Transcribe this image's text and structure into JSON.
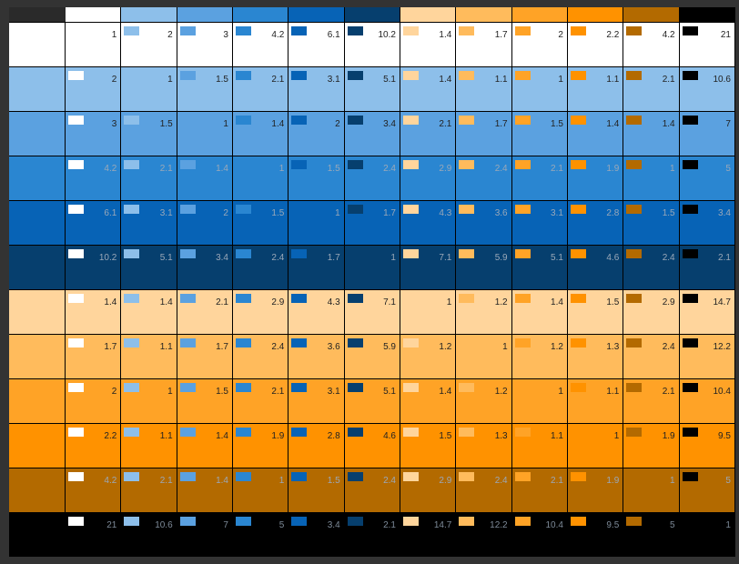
{
  "palette": [
    {
      "name": "white",
      "hex": "#ffffff"
    },
    {
      "name": "light-blue",
      "hex": "#8dbfea"
    },
    {
      "name": "sky-blue",
      "hex": "#5ba1e0"
    },
    {
      "name": "azure",
      "hex": "#2a86d1"
    },
    {
      "name": "royal-blue",
      "hex": "#0763b6"
    },
    {
      "name": "navy-blue",
      "hex": "#063f6e"
    },
    {
      "name": "peach",
      "hex": "#ffd59c"
    },
    {
      "name": "light-orange",
      "hex": "#ffbb5c"
    },
    {
      "name": "orange",
      "hex": "#ffa326"
    },
    {
      "name": "deep-orange",
      "hex": "#ff9200"
    },
    {
      "name": "brown-orange",
      "hex": "#b36a00"
    },
    {
      "name": "black",
      "hex": "#000000"
    }
  ],
  "text_colors": {
    "dark": "#222222",
    "light": "#9aa8b8"
  },
  "contrast_ratios": [
    [
      "1",
      "2",
      "3",
      "4.2",
      "6.1",
      "10.2",
      "1.4",
      "1.7",
      "2",
      "2.2",
      "4.2",
      "21"
    ],
    [
      "2",
      "1",
      "1.5",
      "2.1",
      "3.1",
      "5.1",
      "1.4",
      "1.1",
      "1",
      "1.1",
      "2.1",
      "10.6"
    ],
    [
      "3",
      "1.5",
      "1",
      "1.4",
      "2",
      "3.4",
      "2.1",
      "1.7",
      "1.5",
      "1.4",
      "1.4",
      "7"
    ],
    [
      "4.2",
      "2.1",
      "1.4",
      "1",
      "1.5",
      "2.4",
      "2.9",
      "2.4",
      "2.1",
      "1.9",
      "1",
      "5"
    ],
    [
      "6.1",
      "3.1",
      "2",
      "1.5",
      "1",
      "1.7",
      "4.3",
      "3.6",
      "3.1",
      "2.8",
      "1.5",
      "3.4"
    ],
    [
      "10.2",
      "5.1",
      "3.4",
      "2.4",
      "1.7",
      "1",
      "7.1",
      "5.9",
      "5.1",
      "4.6",
      "2.4",
      "2.1"
    ],
    [
      "1.4",
      "1.4",
      "2.1",
      "2.9",
      "4.3",
      "7.1",
      "1",
      "1.2",
      "1.4",
      "1.5",
      "2.9",
      "14.7"
    ],
    [
      "1.7",
      "1.1",
      "1.7",
      "2.4",
      "3.6",
      "5.9",
      "1.2",
      "1",
      "1.2",
      "1.3",
      "2.4",
      "12.2"
    ],
    [
      "2",
      "1",
      "1.5",
      "2.1",
      "3.1",
      "5.1",
      "1.4",
      "1.2",
      "1",
      "1.1",
      "2.1",
      "10.4"
    ],
    [
      "2.2",
      "1.1",
      "1.4",
      "1.9",
      "2.8",
      "4.6",
      "1.5",
      "1.3",
      "1.1",
      "1",
      "1.9",
      "9.5"
    ],
    [
      "4.2",
      "2.1",
      "1.4",
      "1",
      "1.5",
      "2.4",
      "2.9",
      "2.4",
      "2.1",
      "1.9",
      "1",
      "5"
    ],
    [
      "21",
      "10.6",
      "7",
      "5",
      "3.4",
      "2.1",
      "14.7",
      "12.2",
      "10.4",
      "9.5",
      "5",
      "1"
    ]
  ]
}
